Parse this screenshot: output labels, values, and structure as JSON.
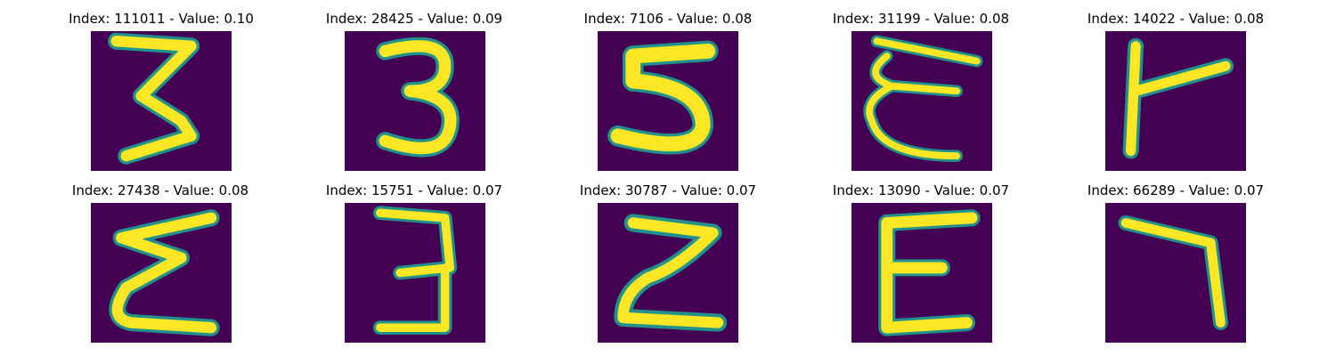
{
  "panels": [
    {
      "title": "Index: 111011 - Value: 0.10",
      "glyph": "3"
    },
    {
      "title": "Index: 28425 - Value: 0.09",
      "glyph": "3"
    },
    {
      "title": "Index: 7106 - Value: 0.08",
      "glyph": "5"
    },
    {
      "title": "Index: 31199 - Value: 0.08",
      "glyph": "E-curly"
    },
    {
      "title": "Index: 14022 - Value: 0.08",
      "glyph": "Y"
    },
    {
      "title": "Index: 27438 - Value: 0.08",
      "glyph": "Sigma"
    },
    {
      "title": "Index: 15751 - Value: 0.07",
      "glyph": "3"
    },
    {
      "title": "Index: 30787 - Value: 0.07",
      "glyph": "Z"
    },
    {
      "title": "Index: 13090 - Value: 0.07",
      "glyph": "E"
    },
    {
      "title": "Index: 66289 - Value: 0.07",
      "glyph": "7"
    }
  ],
  "colors": {
    "background": "#440154",
    "stroke_core": "#fde725",
    "stroke_edge": "#21918c"
  }
}
